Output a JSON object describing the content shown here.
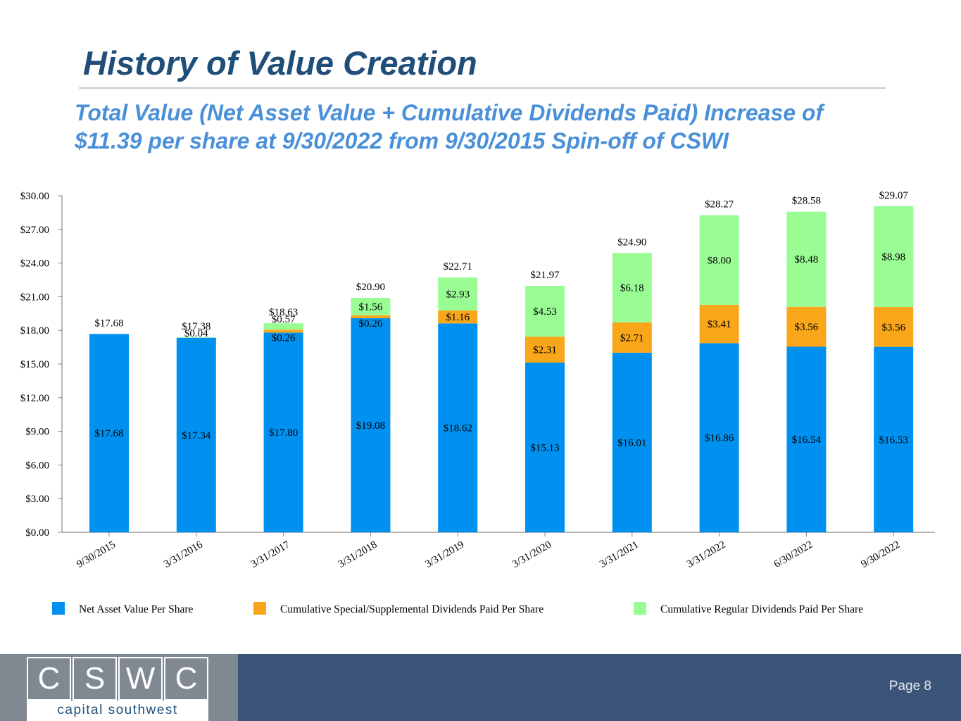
{
  "slide": {
    "title": "History of Value Creation",
    "subtitle_line1": "Total Value (Net Asset Value + Cumulative Dividends Paid) Increase of",
    "subtitle_line2": "$11.39 per share at 9/30/2022 from 9/30/2015 Spin-off of CSWI",
    "page": "Page 8"
  },
  "logo": {
    "letters": [
      "C",
      "S",
      "W",
      "C"
    ],
    "tagline": "capital southwest"
  },
  "colors": {
    "nav": "#0091f0",
    "special": "#f9a61a",
    "regular": "#9afd94",
    "title": "#1f4e79",
    "subtitle": "#4a90d9",
    "footer_left": "#808891",
    "footer_right": "#3b5478"
  },
  "chart_data": {
    "type": "bar",
    "stacked": true,
    "categories": [
      "9/30/2015",
      "3/31/2016",
      "3/31/2017",
      "3/31/2018",
      "3/31/2019",
      "3/31/2020",
      "3/31/2021",
      "3/31/2022",
      "6/30/2022",
      "9/30/2022"
    ],
    "series": [
      {
        "name": "Net Asset Value Per Share",
        "color": "#0091f0",
        "values": [
          17.68,
          17.34,
          17.8,
          19.08,
          18.62,
          15.13,
          16.01,
          16.86,
          16.54,
          16.53
        ],
        "labels": [
          "$17.68",
          "$17.34",
          "$17.80",
          "$19.08",
          "$18.62",
          "$15.13",
          "$16.01",
          "$16.86",
          "$16.54",
          "$16.53"
        ]
      },
      {
        "name": "Cumulative Special/Supplemental Dividends Paid Per Share",
        "color": "#f9a61a",
        "values": [
          0,
          0,
          0.26,
          0.26,
          1.16,
          2.31,
          2.71,
          3.41,
          3.56,
          3.56
        ],
        "labels": [
          "",
          "",
          "$0.26",
          "$0.26",
          "$1.16",
          "$2.31",
          "$2.71",
          "$3.41",
          "$3.56",
          "$3.56"
        ]
      },
      {
        "name": "Cumulative Regular Dividends Paid Per Share",
        "color": "#9afd94",
        "values": [
          0,
          0.04,
          0.57,
          1.56,
          2.93,
          4.53,
          6.18,
          8.0,
          8.48,
          8.98
        ],
        "labels": [
          "",
          "$0.04",
          "$0.57",
          "$1.56",
          "$2.93",
          "$4.53",
          "$6.18",
          "$8.00",
          "$8.48",
          "$8.98"
        ]
      }
    ],
    "totals": [
      "$17.68",
      "$17.38",
      "$18.63",
      "$20.90",
      "$22.71",
      "$21.97",
      "$24.90",
      "$28.27",
      "$28.58",
      "$29.07"
    ],
    "ylim": [
      0,
      30
    ],
    "yticks": [
      "$0.00",
      "$3.00",
      "$6.00",
      "$9.00",
      "$12.00",
      "$15.00",
      "$18.00",
      "$21.00",
      "$24.00",
      "$27.00",
      "$30.00"
    ],
    "xlabel": "",
    "ylabel": "",
    "grid": false,
    "legend_position": "bottom"
  }
}
